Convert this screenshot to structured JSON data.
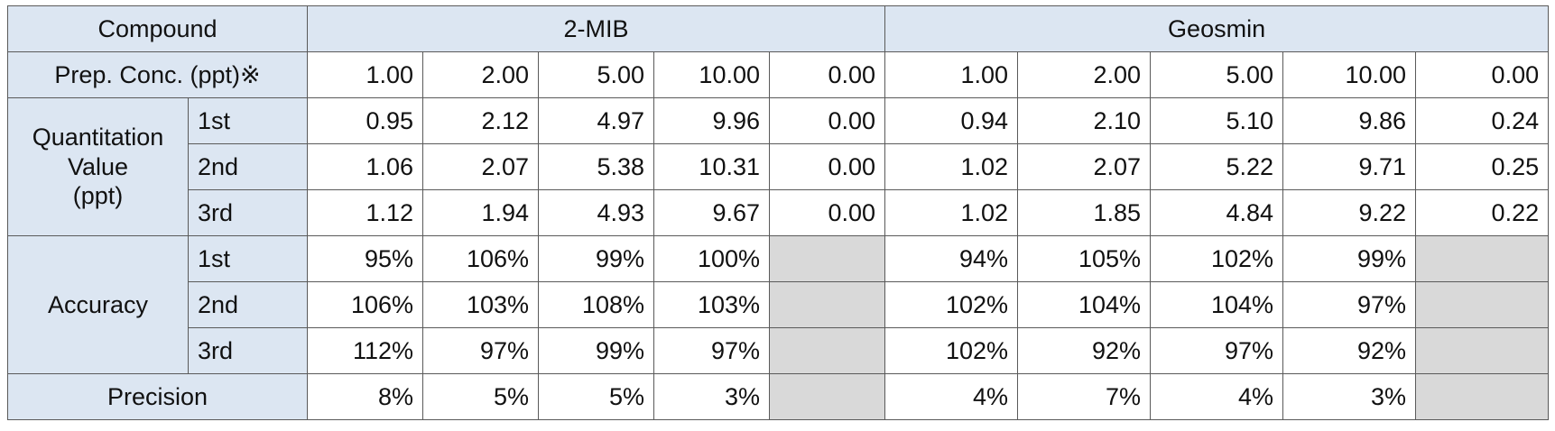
{
  "table": {
    "header": {
      "compound": "Compound",
      "groups": [
        "2-MIB",
        "Geosmin"
      ]
    },
    "prep_conc": {
      "label": "Prep. Conc. (ppt)※",
      "values": [
        [
          "1.00",
          "2.00",
          "5.00",
          "10.00",
          "0.00"
        ],
        [
          "1.00",
          "2.00",
          "5.00",
          "10.00",
          "0.00"
        ]
      ]
    },
    "sections": [
      {
        "label": "Quantitation\nValue\n(ppt)",
        "rows": [
          {
            "label": "1st",
            "values": [
              [
                "0.95",
                "2.12",
                "4.97",
                "9.96",
                "0.00"
              ],
              [
                "0.94",
                "2.10",
                "5.10",
                "9.86",
                "0.24"
              ]
            ]
          },
          {
            "label": "2nd",
            "values": [
              [
                "1.06",
                "2.07",
                "5.38",
                "10.31",
                "0.00"
              ],
              [
                "1.02",
                "2.07",
                "5.22",
                "9.71",
                "0.25"
              ]
            ]
          },
          {
            "label": "3rd",
            "values": [
              [
                "1.12",
                "1.94",
                "4.93",
                "9.67",
                "0.00"
              ],
              [
                "1.02",
                "1.85",
                "4.84",
                "9.22",
                "0.22"
              ]
            ]
          }
        ]
      },
      {
        "label": "Accuracy",
        "rows": [
          {
            "label": "1st",
            "values": [
              [
                "95%",
                "106%",
                "99%",
                "100%"
              ],
              [
                "94%",
                "105%",
                "102%",
                "99%"
              ]
            ]
          },
          {
            "label": "2nd",
            "values": [
              [
                "106%",
                "103%",
                "108%",
                "103%"
              ],
              [
                "102%",
                "104%",
                "104%",
                "97%"
              ]
            ]
          },
          {
            "label": "3rd",
            "values": [
              [
                "112%",
                "97%",
                "99%",
                "97%"
              ],
              [
                "102%",
                "92%",
                "97%",
                "92%"
              ]
            ]
          }
        ]
      }
    ],
    "precision": {
      "label": "Precision",
      "values": [
        [
          "8%",
          "5%",
          "5%",
          "3%"
        ],
        [
          "4%",
          "7%",
          "4%",
          "3%"
        ]
      ]
    }
  }
}
